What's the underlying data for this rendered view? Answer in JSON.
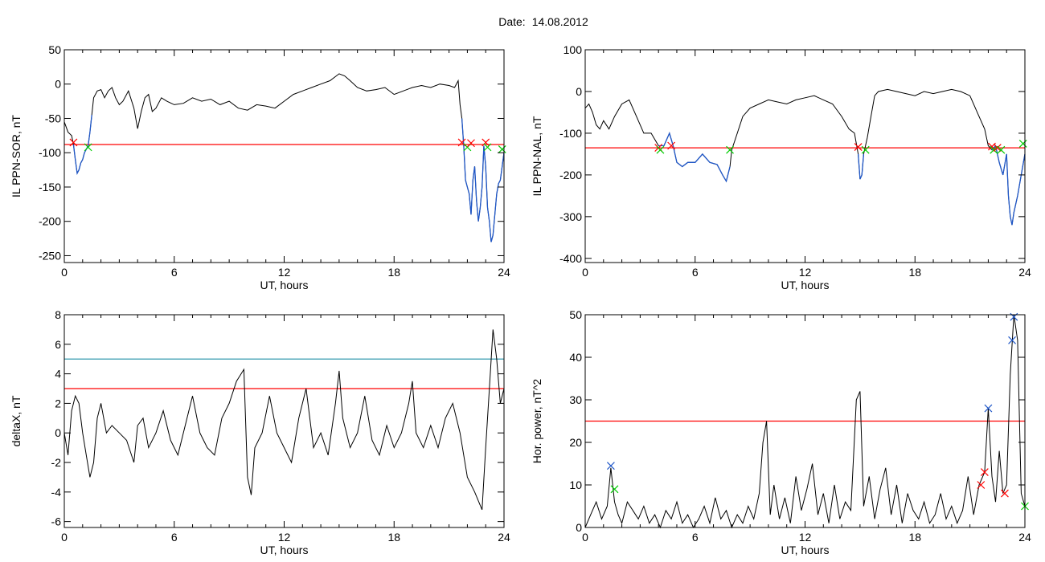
{
  "header": {
    "date_label": "Date:",
    "date_value": "14.08.2012"
  },
  "colors": {
    "axis": "#000000",
    "signal": "#000000",
    "highlight": "#1f57c8",
    "threshold": "#ff0000",
    "threshold2": "#1f8fa6",
    "marker_red": "#ff0000",
    "marker_green": "#00cc00",
    "marker_blue": "#1f57c8"
  },
  "chart_data": [
    {
      "type": "line",
      "xlabel": "UT, hours",
      "ylabel": "IL PPN-SOR, nT",
      "xlim": [
        0,
        24
      ],
      "ylim": [
        -260,
        50
      ],
      "xticks": [
        0,
        6,
        12,
        18,
        24
      ],
      "yticks": [
        50,
        0,
        -50,
        -100,
        -150,
        -200,
        -250
      ],
      "threshold": -88,
      "series": [
        {
          "x": [
            0,
            0.2,
            0.4,
            0.5,
            0.6,
            0.7,
            0.8,
            0.9,
            1.0,
            1.1,
            1.2,
            1.3,
            1.4,
            1.5,
            1.6,
            1.8,
            2.0,
            2.2,
            2.4,
            2.6,
            2.8,
            3.0,
            3.2,
            3.5,
            3.8,
            4.0,
            4.2,
            4.4,
            4.6,
            4.8,
            5.0,
            5.3,
            5.6,
            6.0,
            6.5,
            7.0,
            7.5,
            8.0,
            8.5,
            9.0,
            9.5,
            10.0,
            10.5,
            11.0,
            11.5,
            12.0,
            12.5,
            13.0,
            13.5,
            14.0,
            14.5,
            15.0,
            15.3,
            15.6,
            16.0,
            16.5,
            17.0,
            17.5,
            18.0,
            18.5,
            19.0,
            19.5,
            20.0,
            20.5,
            21.0,
            21.3,
            21.5,
            21.6,
            21.7,
            21.8,
            21.9,
            22.0,
            22.1,
            22.2,
            22.3,
            22.4,
            22.5,
            22.6,
            22.7,
            22.8,
            22.9,
            23.0,
            23.1,
            23.2,
            23.3,
            23.4,
            23.5,
            23.6,
            23.7,
            23.8,
            23.9,
            24.0
          ],
          "y": [
            -55,
            -70,
            -75,
            -88,
            -110,
            -130,
            -125,
            -115,
            -110,
            -100,
            -95,
            -90,
            -70,
            -45,
            -20,
            -10,
            -8,
            -20,
            -10,
            -5,
            -20,
            -30,
            -25,
            -10,
            -35,
            -65,
            -40,
            -20,
            -15,
            -40,
            -35,
            -20,
            -25,
            -30,
            -28,
            -20,
            -25,
            -22,
            -30,
            -25,
            -35,
            -38,
            -30,
            -32,
            -35,
            -25,
            -15,
            -10,
            -5,
            0,
            5,
            15,
            12,
            5,
            -5,
            -10,
            -8,
            -5,
            -15,
            -10,
            -5,
            -2,
            -5,
            0,
            -2,
            -5,
            5,
            -30,
            -50,
            -90,
            -140,
            -150,
            -160,
            -190,
            -140,
            -120,
            -170,
            -200,
            -180,
            -150,
            -90,
            -120,
            -180,
            -200,
            -230,
            -220,
            -190,
            -160,
            -145,
            -140,
            -120,
            -100
          ],
          "highlight_segments": [
            [
              0.5,
              1.5
            ],
            [
              21.7,
              24.0
            ]
          ]
        }
      ],
      "markers": [
        {
          "x": 0.5,
          "y": -85,
          "color": "red"
        },
        {
          "x": 1.3,
          "y": -92,
          "color": "green"
        },
        {
          "x": 21.7,
          "y": -85,
          "color": "red"
        },
        {
          "x": 22.0,
          "y": -92,
          "color": "green"
        },
        {
          "x": 22.2,
          "y": -86,
          "color": "red"
        },
        {
          "x": 23.0,
          "y": -85,
          "color": "red"
        },
        {
          "x": 23.1,
          "y": -92,
          "color": "green"
        },
        {
          "x": 23.9,
          "y": -95,
          "color": "green"
        }
      ]
    },
    {
      "type": "line",
      "xlabel": "UT, hours",
      "ylabel": "IL PPN-NAL, nT",
      "xlim": [
        0,
        24
      ],
      "ylim": [
        -410,
        100
      ],
      "xticks": [
        0,
        6,
        12,
        18,
        24
      ],
      "yticks": [
        100,
        0,
        -100,
        -200,
        -300,
        -400
      ],
      "threshold": -135,
      "series": [
        {
          "x": [
            0,
            0.2,
            0.4,
            0.6,
            0.8,
            1.0,
            1.3,
            1.6,
            2.0,
            2.4,
            2.8,
            3.2,
            3.6,
            4.0,
            4.3,
            4.6,
            4.8,
            5.0,
            5.3,
            5.6,
            6.0,
            6.4,
            6.8,
            7.2,
            7.5,
            7.7,
            7.9,
            8.0,
            8.3,
            8.6,
            9.0,
            9.5,
            10.0,
            10.5,
            11.0,
            11.5,
            12.0,
            12.5,
            13.0,
            13.5,
            14.0,
            14.4,
            14.7,
            14.9,
            15.0,
            15.1,
            15.2,
            15.4,
            15.6,
            15.8,
            16.0,
            16.5,
            17.0,
            17.5,
            18.0,
            18.5,
            19.0,
            19.5,
            20.0,
            20.5,
            21.0,
            21.4,
            21.8,
            22.0,
            22.2,
            22.4,
            22.6,
            22.8,
            23.0,
            23.1,
            23.2,
            23.3,
            23.4,
            23.6,
            23.8,
            24.0
          ],
          "y": [
            -40,
            -30,
            -50,
            -80,
            -90,
            -70,
            -90,
            -60,
            -30,
            -20,
            -60,
            -100,
            -100,
            -130,
            -130,
            -100,
            -130,
            -170,
            -180,
            -170,
            -170,
            -150,
            -170,
            -175,
            -200,
            -215,
            -180,
            -140,
            -100,
            -60,
            -40,
            -30,
            -20,
            -25,
            -30,
            -20,
            -15,
            -10,
            -20,
            -30,
            -60,
            -90,
            -100,
            -150,
            -210,
            -200,
            -150,
            -110,
            -60,
            -10,
            0,
            5,
            0,
            -5,
            -10,
            0,
            -5,
            0,
            5,
            0,
            -10,
            -50,
            -90,
            -130,
            -140,
            -130,
            -170,
            -200,
            -150,
            -250,
            -300,
            -320,
            -290,
            -250,
            -200,
            -150
          ],
          "highlight_segments": [
            [
              4.0,
              7.9
            ],
            [
              14.9,
              15.3
            ],
            [
              22.2,
              24.0
            ]
          ]
        }
      ],
      "markers": [
        {
          "x": 4.0,
          "y": -135,
          "color": "red"
        },
        {
          "x": 4.1,
          "y": -140,
          "color": "green"
        },
        {
          "x": 4.7,
          "y": -130,
          "color": "red"
        },
        {
          "x": 7.9,
          "y": -140,
          "color": "green"
        },
        {
          "x": 14.9,
          "y": -133,
          "color": "red"
        },
        {
          "x": 15.3,
          "y": -140,
          "color": "green"
        },
        {
          "x": 22.2,
          "y": -132,
          "color": "red"
        },
        {
          "x": 22.3,
          "y": -140,
          "color": "green"
        },
        {
          "x": 22.5,
          "y": -135,
          "color": "red"
        },
        {
          "x": 22.7,
          "y": -140,
          "color": "green"
        },
        {
          "x": 23.9,
          "y": -125,
          "color": "green"
        }
      ]
    },
    {
      "type": "line",
      "xlabel": "UT, hours",
      "ylabel": "deltaX, nT",
      "xlim": [
        0,
        24
      ],
      "ylim": [
        -6.4,
        8
      ],
      "xticks": [
        0,
        6,
        12,
        18,
        24
      ],
      "yticks": [
        8,
        6,
        4,
        2,
        0,
        -2,
        -4,
        -6
      ],
      "thresholds": [
        {
          "value": 5,
          "color": "teal"
        },
        {
          "value": 3,
          "color": "red"
        }
      ],
      "series": [
        {
          "x": [
            0,
            0.2,
            0.4,
            0.6,
            0.8,
            1.0,
            1.2,
            1.4,
            1.6,
            1.8,
            2.0,
            2.3,
            2.6,
            3.0,
            3.4,
            3.8,
            4.0,
            4.3,
            4.6,
            5.0,
            5.4,
            5.8,
            6.2,
            6.6,
            7.0,
            7.4,
            7.8,
            8.2,
            8.6,
            9.0,
            9.4,
            9.8,
            10.0,
            10.2,
            10.4,
            10.8,
            11.2,
            11.6,
            12.0,
            12.4,
            12.8,
            13.2,
            13.6,
            14.0,
            14.4,
            14.8,
            15.0,
            15.2,
            15.6,
            16.0,
            16.4,
            16.8,
            17.2,
            17.6,
            18.0,
            18.4,
            18.8,
            19.0,
            19.2,
            19.6,
            20.0,
            20.4,
            20.8,
            21.2,
            21.6,
            22.0,
            22.4,
            22.8,
            23.0,
            23.2,
            23.4,
            23.6,
            23.8,
            24.0
          ],
          "y": [
            0,
            -1.5,
            1.5,
            2.5,
            2.0,
            0,
            -1.5,
            -3.0,
            -2.0,
            1.0,
            2.0,
            0,
            0.5,
            0,
            -0.5,
            -2.0,
            0.5,
            1.0,
            -1.0,
            0,
            1.5,
            -0.5,
            -1.5,
            0.5,
            2.5,
            0,
            -1.0,
            -1.5,
            1.0,
            2.0,
            3.5,
            4.3,
            -3.0,
            -4.2,
            -1.0,
            0,
            2.5,
            0,
            -1.0,
            -2.0,
            1.0,
            3.0,
            -1.0,
            0,
            -1.5,
            2.0,
            4.2,
            1.0,
            -1.0,
            0,
            2.5,
            -0.5,
            -1.5,
            0.5,
            -1.0,
            0,
            2.0,
            3.5,
            0,
            -1.0,
            0.5,
            -1.0,
            1.0,
            2.0,
            0,
            -3.0,
            -4.0,
            -5.2,
            -1.0,
            3.0,
            7.0,
            5.0,
            2.0,
            3.0
          ]
        }
      ],
      "markers": []
    },
    {
      "type": "line",
      "xlabel": "UT, hours",
      "ylabel": "Hor. power, nT^2",
      "xlim": [
        0,
        24
      ],
      "ylim": [
        0,
        50
      ],
      "xticks": [
        0,
        6,
        12,
        18,
        24
      ],
      "yticks": [
        50,
        40,
        30,
        20,
        10,
        0
      ],
      "threshold": 25,
      "series": [
        {
          "x": [
            0,
            0.3,
            0.6,
            0.9,
            1.2,
            1.4,
            1.6,
            1.8,
            2.0,
            2.3,
            2.6,
            2.9,
            3.2,
            3.5,
            3.8,
            4.1,
            4.4,
            4.7,
            5.0,
            5.3,
            5.6,
            5.9,
            6.2,
            6.5,
            6.8,
            7.1,
            7.4,
            7.7,
            8.0,
            8.3,
            8.6,
            8.9,
            9.2,
            9.5,
            9.7,
            9.9,
            10.1,
            10.3,
            10.6,
            10.9,
            11.2,
            11.5,
            11.8,
            12.1,
            12.4,
            12.7,
            13.0,
            13.3,
            13.6,
            13.9,
            14.2,
            14.5,
            14.8,
            15.0,
            15.2,
            15.5,
            15.8,
            16.1,
            16.4,
            16.7,
            17.0,
            17.3,
            17.6,
            17.9,
            18.2,
            18.5,
            18.8,
            19.1,
            19.4,
            19.7,
            20.0,
            20.3,
            20.6,
            20.9,
            21.2,
            21.5,
            21.8,
            22.0,
            22.2,
            22.4,
            22.6,
            22.8,
            23.0,
            23.2,
            23.4,
            23.6,
            23.8,
            24.0
          ],
          "y": [
            0,
            3,
            6,
            2,
            5,
            14,
            6,
            3,
            1,
            6,
            4,
            2,
            5,
            1,
            3,
            0,
            4,
            2,
            6,
            1,
            3,
            0,
            2,
            5,
            1,
            7,
            2,
            4,
            0,
            3,
            1,
            5,
            2,
            8,
            20,
            25,
            3,
            10,
            2,
            7,
            1,
            12,
            4,
            9,
            15,
            3,
            8,
            1,
            10,
            2,
            6,
            4,
            30,
            32,
            5,
            12,
            2,
            9,
            14,
            3,
            10,
            1,
            8,
            4,
            2,
            6,
            1,
            3,
            8,
            2,
            5,
            1,
            4,
            12,
            3,
            10,
            13,
            28,
            12,
            6,
            18,
            8,
            10,
            36,
            50,
            44,
            8,
            5
          ]
        }
      ],
      "markers": [
        {
          "x": 1.4,
          "y": 14.5,
          "color": "blue"
        },
        {
          "x": 1.6,
          "y": 9,
          "color": "green"
        },
        {
          "x": 21.6,
          "y": 10,
          "color": "red"
        },
        {
          "x": 21.8,
          "y": 13,
          "color": "red"
        },
        {
          "x": 22.0,
          "y": 28,
          "color": "blue"
        },
        {
          "x": 22.9,
          "y": 8,
          "color": "red"
        },
        {
          "x": 23.3,
          "y": 44,
          "color": "blue"
        },
        {
          "x": 23.4,
          "y": 49.5,
          "color": "blue"
        },
        {
          "x": 24.0,
          "y": 5,
          "color": "green"
        }
      ]
    }
  ]
}
